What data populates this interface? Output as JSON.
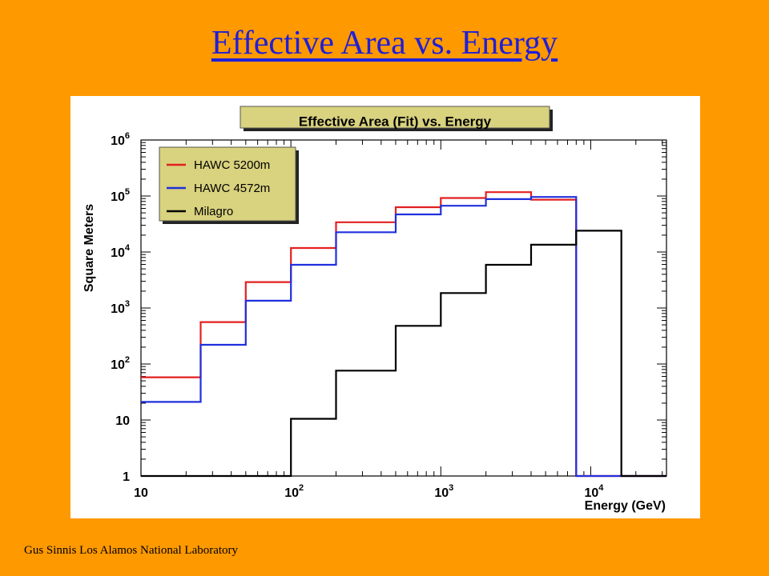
{
  "slide": {
    "title": "Effective Area vs. Energy",
    "footer": "Gus Sinnis Los Alamos National Laboratory",
    "background_color": "#ff9900",
    "title_color": "#1f1fd8"
  },
  "chart_data": {
    "type": "line",
    "step": true,
    "title": "Effective Area (Fit) vs. Energy",
    "xlabel": "Energy (GeV)",
    "ylabel": "Square Meters",
    "xscale": "log",
    "yscale": "log",
    "xlim": [
      10,
      32000
    ],
    "ylim": [
      1,
      1000000
    ],
    "legend_position": "top-left",
    "grid": false,
    "x_ticks": [
      {
        "value": 10,
        "base": "10",
        "exp": ""
      },
      {
        "value": 100,
        "base": "10",
        "exp": "2"
      },
      {
        "value": 1000,
        "base": "10",
        "exp": "3"
      },
      {
        "value": 10000,
        "base": "10",
        "exp": "4"
      }
    ],
    "y_ticks": [
      {
        "value": 1,
        "base": "1",
        "exp": ""
      },
      {
        "value": 10,
        "base": "10",
        "exp": ""
      },
      {
        "value": 100,
        "base": "10",
        "exp": "2"
      },
      {
        "value": 1000,
        "base": "10",
        "exp": "3"
      },
      {
        "value": 10000,
        "base": "10",
        "exp": "4"
      },
      {
        "value": 100000,
        "base": "10",
        "exp": "5"
      },
      {
        "value": 1000000,
        "base": "10",
        "exp": "6"
      }
    ],
    "bin_edges": [
      10,
      25,
      50,
      100,
      200,
      500,
      1000,
      2000,
      4000,
      8000,
      16000,
      32000
    ],
    "series": [
      {
        "name": "HAWC 5200m",
        "color": "#e32020",
        "values": [
          58,
          560,
          2900,
          11800,
          34000,
          63000,
          92000,
          117000,
          86000,
          1,
          1
        ]
      },
      {
        "name": "HAWC 4572m",
        "color": "#2030dd",
        "values": [
          21,
          220,
          1350,
          5900,
          22500,
          47000,
          67000,
          88000,
          96000,
          1,
          1
        ]
      },
      {
        "name": "Milagro",
        "color": "#000000",
        "values": [
          1,
          1,
          1,
          10.5,
          76,
          480,
          1850,
          5900,
          13500,
          24000,
          1
        ]
      }
    ]
  }
}
